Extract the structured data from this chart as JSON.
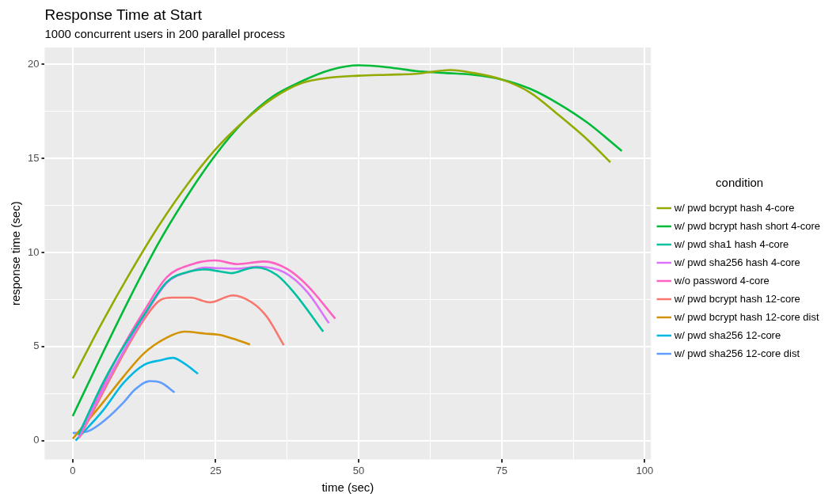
{
  "chart_data": {
    "type": "line",
    "title": "Response Time at Start",
    "subtitle": "1000 concurrent users in 200 parallel process",
    "xlabel": "time (sec)",
    "ylabel": "response time (sec)",
    "legend_title": "condition",
    "legend": "right",
    "grid": true,
    "marker": "none",
    "line_style": "solid",
    "xlim": [
      -4.9,
      101.1
    ],
    "xticks": [
      0,
      {
        "value": 12.5,
        "label": null
      },
      25,
      {
        "value": 37.5,
        "label": null
      },
      50,
      {
        "value": 62.5,
        "label": null
      },
      75,
      {
        "value": 87.5,
        "label": null
      },
      100
    ],
    "ylim": [
      -1,
      20.9
    ],
    "yticks": [
      0,
      {
        "value": 2.5,
        "label": null
      },
      5,
      {
        "value": 7.5,
        "label": null
      },
      10,
      {
        "value": 12.5,
        "label": null
      },
      15,
      {
        "value": 17.5,
        "label": null
      },
      20
    ],
    "series": [
      {
        "name": "w/ pwd bcrypt hash 4-core",
        "color": "#93aa00",
        "x": [
          0,
          5,
          10,
          15,
          20,
          25,
          30,
          35,
          40,
          45,
          50,
          55,
          60,
          66,
          70,
          75,
          80,
          85,
          90,
          94
        ],
        "values": [
          3.3,
          6.2,
          8.9,
          11.4,
          13.6,
          15.5,
          17.0,
          18.2,
          19.0,
          19.3,
          19.4,
          19.45,
          19.5,
          19.7,
          19.55,
          19.2,
          18.5,
          17.3,
          16.0,
          14.8
        ]
      },
      {
        "name": "w/ pwd bcrypt hash short 4-core",
        "color": "#00ba38",
        "x": [
          0,
          5,
          10,
          15,
          20,
          25,
          30,
          35,
          40,
          45,
          50,
          55,
          60,
          65,
          70,
          75,
          80,
          85,
          90,
          96
        ],
        "values": [
          1.3,
          4.5,
          7.6,
          10.5,
          13.0,
          15.2,
          17.0,
          18.3,
          19.1,
          19.7,
          19.95,
          19.85,
          19.65,
          19.55,
          19.45,
          19.2,
          18.7,
          17.9,
          16.9,
          15.4
        ]
      },
      {
        "name": "w/ pwd sha1 hash 4-core",
        "color": "#00c19f",
        "x": [
          1,
          5.3,
          7.9,
          12.5,
          16.5,
          20.6,
          23.1,
          25.6,
          27.8,
          30.6,
          32.1,
          35.7,
          38.8,
          43.8
        ],
        "values": [
          0.3,
          3.07,
          4.5,
          6.7,
          8.45,
          9.0,
          9.1,
          9.0,
          8.9,
          9.14,
          9.2,
          8.8,
          7.83,
          5.79
        ]
      },
      {
        "name": "w/ pwd sha256 hash 4-core",
        "color": "#db72fb",
        "x": [
          1,
          5.3,
          7.9,
          12.5,
          16.5,
          20.6,
          23.1,
          24.9,
          28.8,
          32.3,
          37.0,
          41.0,
          44.8
        ],
        "values": [
          0.2,
          2.7,
          4.2,
          6.6,
          8.4,
          9.0,
          9.2,
          9.17,
          9.14,
          9.24,
          8.94,
          7.9,
          6.24
        ]
      },
      {
        "name": "w/o password 4-core",
        "color": "#ff61c3",
        "x": [
          1.1,
          5.3,
          7.9,
          12.5,
          16.5,
          20.6,
          24.9,
          28.8,
          33.4,
          37.4,
          41.0,
          45.9
        ],
        "values": [
          0.14,
          2.9,
          4.5,
          6.9,
          8.7,
          9.35,
          9.58,
          9.38,
          9.52,
          9.14,
          8.25,
          6.48
        ]
      },
      {
        "name": "w/ pwd bcrypt hash 12-core",
        "color": "#f8766d",
        "x": [
          1.1,
          12.5,
          15.5,
          17.5,
          20.6,
          24.0,
          28.0,
          31.3,
          33.9,
          36.9
        ],
        "values": [
          0.14,
          6.45,
          7.5,
          7.6,
          7.6,
          7.35,
          7.72,
          7.35,
          6.6,
          5.07
        ]
      },
      {
        "name": "w/ pwd bcrypt hash 12-core dist",
        "color": "#d39200",
        "x": [
          0,
          5.3,
          8.9,
          12.5,
          16.5,
          19.5,
          23.1,
          25.6,
          28.1,
          31.0
        ],
        "values": [
          0.1,
          2.03,
          3.41,
          4.65,
          5.48,
          5.79,
          5.69,
          5.62,
          5.41,
          5.11
        ]
      },
      {
        "name": "w/ pwd sha256 12-core",
        "color": "#00b9e3",
        "x": [
          0.5,
          5.3,
          8.9,
          12.5,
          15.5,
          17.5,
          19.5,
          21.9
        ],
        "values": [
          0,
          1.6,
          3.07,
          4.03,
          4.28,
          4.4,
          4.1,
          3.55
        ]
      },
      {
        "name": "w/ pwd sha256 12-core dist",
        "color": "#619cff",
        "x": [
          0,
          2.7,
          5.8,
          8.9,
          10.9,
          13.5,
          15.5,
          17.8
        ],
        "values": [
          0.4,
          0.5,
          1.13,
          2.03,
          2.72,
          3.16,
          3.07,
          2.56
        ]
      }
    ]
  }
}
